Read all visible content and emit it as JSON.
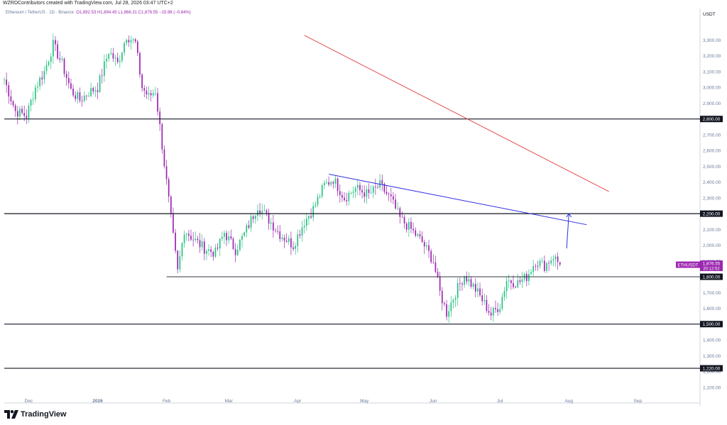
{
  "header": {
    "credit": "WZRDContributors created with TradingView.com, Jul 28, 2026 03:47 UTC+2",
    "symbol": "Ethereum / TetherUS · 1D · Binance",
    "ohlc": "O1,892.53  H1,894.45  L1,866.31  C1,876.55  −15.98 (−0.84%)"
  },
  "footer": {
    "brand": "TradingView"
  },
  "colors": {
    "up": "#26c281",
    "down": "#9c27b0",
    "trend_red": "#e74c4c",
    "trend_blue": "#2e2ee0"
  },
  "chart_data": {
    "type": "candlestick",
    "ylabel": "USDT",
    "ylim": [
      1000,
      3500
    ],
    "y_ticks": [
      "1,100.00",
      "1,200.00",
      "1,300.00",
      "1,400.00",
      "1,500.00",
      "1,600.00",
      "1,700.00",
      "1,800.00",
      "1,900.00",
      "2,000.00",
      "2,100.00",
      "2,200.00",
      "2,300.00",
      "2,400.00",
      "2,500.00",
      "2,600.00",
      "2,700.00",
      "2,800.00",
      "2,900.00",
      "3,000.00",
      "3,100.00",
      "3,200.00",
      "3,300.00"
    ],
    "y_tick_values": [
      1100,
      1200,
      1300,
      1400,
      1500,
      1600,
      1700,
      1800,
      1900,
      2000,
      2100,
      2200,
      2300,
      2400,
      2500,
      2600,
      2700,
      2800,
      2900,
      3000,
      3100,
      3200,
      3300
    ],
    "x_labels": [
      "Dec",
      "2026",
      "Feb",
      "Mar",
      "Apr",
      "May",
      "Jun",
      "Jul",
      "Aug",
      "Sep"
    ],
    "x_label_dates": [
      "2025-12-01",
      "2026-01-01",
      "2026-02-01",
      "2026-03-01",
      "2026-04-01",
      "2026-05-01",
      "2026-06-01",
      "2026-07-01",
      "2026-08-01",
      "2026-09-01"
    ],
    "xlim": [
      "2025-11-20",
      "2026-09-29"
    ],
    "horizontal_levels": [
      {
        "value": 2800,
        "label": "2,800.00"
      },
      {
        "value": 2200,
        "label": "2,200.00"
      },
      {
        "value": 1800,
        "label": "1,800.00"
      },
      {
        "value": 1500,
        "label": "1,500.00"
      },
      {
        "value": 1220,
        "label": "1,220.00"
      }
    ],
    "trendlines": [
      {
        "color": "red",
        "from": [
          "2026-04-04",
          3330
        ],
        "to": [
          "2026-08-19",
          2340
        ]
      },
      {
        "color": "blue",
        "from": [
          "2026-04-15",
          2450
        ],
        "to": [
          "2026-08-09",
          2130
        ]
      }
    ],
    "arrow": {
      "from": [
        "2026-07-31",
        1980
      ],
      "to": [
        "2026-08-01",
        2200
      ]
    },
    "current_price": {
      "symbol": "ETHUSDT",
      "price": "1,876.55",
      "countdown": "20:12:52",
      "value": 1876.55
    },
    "waypoints": [
      [
        "2025-11-20",
        3050
      ],
      [
        "2025-11-25",
        2850
      ],
      [
        "2025-11-30",
        2820
      ],
      [
        "2025-12-04",
        3000
      ],
      [
        "2025-12-08",
        3100
      ],
      [
        "2025-12-12",
        3270
      ],
      [
        "2025-12-16",
        3150
      ],
      [
        "2025-12-20",
        2980
      ],
      [
        "2025-12-24",
        2920
      ],
      [
        "2025-12-28",
        2970
      ],
      [
        "2026-01-01",
        3000
      ],
      [
        "2026-01-06",
        3230
      ],
      [
        "2026-01-10",
        3150
      ],
      [
        "2026-01-14",
        3330
      ],
      [
        "2026-01-18",
        3280
      ],
      [
        "2026-01-21",
        3000
      ],
      [
        "2026-01-24",
        2940
      ],
      [
        "2026-01-27",
        2980
      ],
      [
        "2026-01-29",
        2750
      ],
      [
        "2026-02-01",
        2400
      ],
      [
        "2026-02-04",
        2050
      ],
      [
        "2026-02-06",
        1830
      ],
      [
        "2026-02-09",
        2100
      ],
      [
        "2026-02-13",
        2040
      ],
      [
        "2026-02-18",
        1980
      ],
      [
        "2026-02-23",
        1950
      ],
      [
        "2026-02-27",
        2080
      ],
      [
        "2026-03-04",
        1970
      ],
      [
        "2026-03-08",
        2070
      ],
      [
        "2026-03-14",
        2250
      ],
      [
        "2026-03-18",
        2180
      ],
      [
        "2026-03-24",
        2070
      ],
      [
        "2026-03-30",
        2000
      ],
      [
        "2026-04-04",
        2150
      ],
      [
        "2026-04-08",
        2230
      ],
      [
        "2026-04-13",
        2380
      ],
      [
        "2026-04-17",
        2420
      ],
      [
        "2026-04-22",
        2300
      ],
      [
        "2026-04-27",
        2360
      ],
      [
        "2026-05-03",
        2320
      ],
      [
        "2026-05-08",
        2380
      ],
      [
        "2026-05-13",
        2290
      ],
      [
        "2026-05-17",
        2170
      ],
      [
        "2026-05-22",
        2100
      ],
      [
        "2026-05-27",
        2020
      ],
      [
        "2026-06-01",
        1900
      ],
      [
        "2026-06-04",
        1700
      ],
      [
        "2026-06-07",
        1570
      ],
      [
        "2026-06-11",
        1700
      ],
      [
        "2026-06-15",
        1810
      ],
      [
        "2026-06-20",
        1720
      ],
      [
        "2026-06-24",
        1630
      ],
      [
        "2026-06-27",
        1560
      ],
      [
        "2026-07-01",
        1620
      ],
      [
        "2026-07-04",
        1780
      ],
      [
        "2026-07-09",
        1760
      ],
      [
        "2026-07-13",
        1800
      ],
      [
        "2026-07-17",
        1900
      ],
      [
        "2026-07-21",
        1870
      ],
      [
        "2026-07-25",
        1930
      ],
      [
        "2026-07-28",
        1877
      ]
    ]
  }
}
